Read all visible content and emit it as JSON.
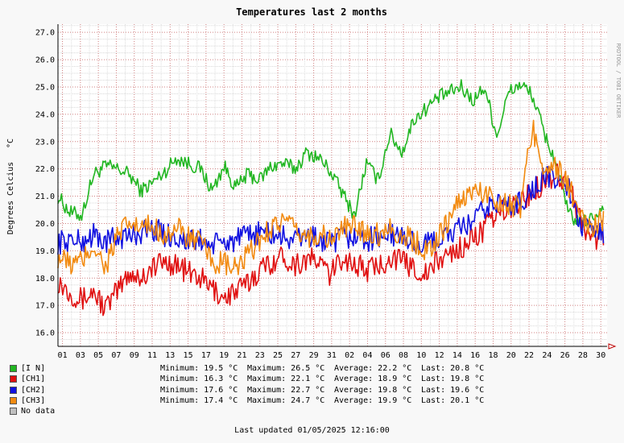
{
  "chart_data": {
    "type": "line",
    "title": "Temperatures last 2 months",
    "ylabel": "Degrees Celcius",
    "yunit": "°C",
    "watermark": "RRDTOOL / TOBI OETIKER",
    "ylim": [
      15.5,
      27.3
    ],
    "yticks": [
      "16.0",
      "17.0",
      "18.0",
      "19.0",
      "20.0",
      "21.0",
      "22.0",
      "23.0",
      "24.0",
      "25.0",
      "26.0",
      "27.0"
    ],
    "xlabels": [
      "01",
      "03",
      "05",
      "07",
      "09",
      "11",
      "13",
      "15",
      "17",
      "19",
      "21",
      "23",
      "25",
      "27",
      "29",
      "31",
      "02",
      "04",
      "06",
      "08",
      "10",
      "12",
      "14",
      "16",
      "18",
      "20",
      "22",
      "24",
      "26",
      "28",
      "30"
    ],
    "x_day_range": [
      0,
      61.2
    ],
    "grid": true,
    "series": [
      {
        "name": "[I N]",
        "color": "#22b622",
        "y": [
          21.0,
          20.4,
          20.3,
          21.8,
          22.1,
          22.0,
          21.8,
          21.2,
          21.5,
          21.9,
          22.4,
          22.2,
          22.0,
          21.2,
          22.1,
          21.3,
          21.8,
          21.6,
          22.1,
          22.2,
          22.0,
          22.6,
          22.4,
          21.9,
          21.1,
          20.3,
          22.2,
          21.6,
          23.3,
          22.6,
          23.8,
          24.2,
          24.6,
          24.8,
          25.0,
          24.5,
          25.0,
          23.2,
          24.8,
          25.1,
          24.7,
          23.3,
          22.2,
          20.4,
          20.0,
          20.2,
          20.6
        ]
      },
      {
        "name": "[CH1]",
        "color": "#e01010",
        "y": [
          17.9,
          17.5,
          17.2,
          17.5,
          16.9,
          17.5,
          18.2,
          18.0,
          18.4,
          18.6,
          18.5,
          18.2,
          18.0,
          17.6,
          17.3,
          17.5,
          17.8,
          18.3,
          18.6,
          18.8,
          18.5,
          18.7,
          18.6,
          18.1,
          18.8,
          18.5,
          18.3,
          18.4,
          18.8,
          18.6,
          18.4,
          18.1,
          18.6,
          18.9,
          19.1,
          19.5,
          19.8,
          20.3,
          20.6,
          20.8,
          21.1,
          21.6,
          21.8,
          21.5,
          20.2,
          19.4,
          19.5
        ]
      },
      {
        "name": "[CH2]",
        "color": "#1010e0",
        "y": [
          19.3,
          19.4,
          19.3,
          19.6,
          19.3,
          19.5,
          19.5,
          19.7,
          19.8,
          19.6,
          19.5,
          19.3,
          19.4,
          19.2,
          19.3,
          19.4,
          19.5,
          19.7,
          19.6,
          19.5,
          19.4,
          19.6,
          19.4,
          19.2,
          19.5,
          19.5,
          19.4,
          19.5,
          19.6,
          19.5,
          19.3,
          19.2,
          19.4,
          19.6,
          19.8,
          20.1,
          20.5,
          20.8,
          20.6,
          20.8,
          21.2,
          21.7,
          21.6,
          21.4,
          20.0,
          19.6,
          19.7
        ]
      },
      {
        "name": "[CH3]",
        "color": "#f28a10",
        "y": [
          18.8,
          18.5,
          18.6,
          19.2,
          18.4,
          19.5,
          20.0,
          19.8,
          19.9,
          19.6,
          19.8,
          19.5,
          19.3,
          18.6,
          18.5,
          18.3,
          18.8,
          19.4,
          19.9,
          20.1,
          19.7,
          19.5,
          19.6,
          19.4,
          19.8,
          19.9,
          19.7,
          19.6,
          19.9,
          19.5,
          19.4,
          19.0,
          19.4,
          20.2,
          20.9,
          21.2,
          21.1,
          20.9,
          20.7,
          20.6,
          23.5,
          22.1,
          22.0,
          21.5,
          20.1,
          19.9,
          20.1
        ]
      }
    ]
  },
  "legend": [
    {
      "label": "[I N]",
      "color": "#22b622"
    },
    {
      "label": "[CH1]",
      "color": "#e01010"
    },
    {
      "label": "[CH2]",
      "color": "#1010e0"
    },
    {
      "label": "[CH3]",
      "color": "#f28a10"
    },
    {
      "label": "No data",
      "color": "#c0c0c0"
    }
  ],
  "stats": [
    {
      "min": "Minimum: 19.5 °C",
      "max": "Maximum: 26.5 °C",
      "avg": "Average: 22.2 °C",
      "last": "Last: 20.8 °C"
    },
    {
      "min": "Minimum: 16.3 °C",
      "max": "Maximum: 22.1 °C",
      "avg": "Average: 18.9 °C",
      "last": "Last: 19.8 °C"
    },
    {
      "min": "Minimum: 17.6 °C",
      "max": "Maximum: 22.7 °C",
      "avg": "Average: 19.8 °C",
      "last": "Last: 19.6 °C"
    },
    {
      "min": "Minimum: 17.4 °C",
      "max": "Maximum: 24.7 °C",
      "avg": "Average: 19.9 °C",
      "last": "Last: 20.1 °C"
    }
  ],
  "footer": "Last updated 01/05/2025 12:16:00"
}
